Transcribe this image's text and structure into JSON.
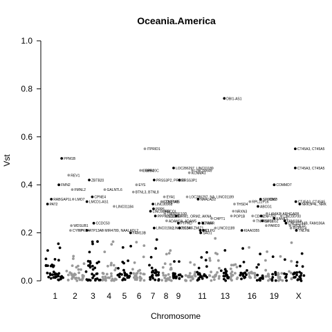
{
  "chart_data": {
    "type": "scatter",
    "title": "Oceania.America",
    "xlabel": "Chromosome",
    "ylabel": "Vst",
    "ylim": [
      0,
      1
    ],
    "y_ticks": [
      "0.0",
      "0.2",
      "0.4",
      "0.6",
      "0.8",
      "1.0"
    ],
    "x_tick_labels": [
      "1",
      "2",
      "3",
      "4",
      "5",
      "6",
      "7",
      "8",
      "9",
      "11",
      "13",
      "16",
      "19",
      "X"
    ],
    "grid": false,
    "legend": "none",
    "colors": {
      "odd": "#000000",
      "even": "#999999"
    },
    "chromosomes": [
      {
        "chr": "1",
        "shade": "odd"
      },
      {
        "chr": "2",
        "shade": "even"
      },
      {
        "chr": "3",
        "shade": "odd"
      },
      {
        "chr": "4",
        "shade": "even"
      },
      {
        "chr": "5",
        "shade": "odd"
      },
      {
        "chr": "6",
        "shade": "even"
      },
      {
        "chr": "7",
        "shade": "odd"
      },
      {
        "chr": "8",
        "shade": "even"
      },
      {
        "chr": "9",
        "shade": "odd"
      },
      {
        "chr": "10",
        "shade": "even"
      },
      {
        "chr": "11",
        "shade": "odd"
      },
      {
        "chr": "12",
        "shade": "even"
      },
      {
        "chr": "13",
        "shade": "odd"
      },
      {
        "chr": "14",
        "shade": "even"
      },
      {
        "chr": "15",
        "shade": "odd"
      },
      {
        "chr": "16",
        "shade": "even"
      },
      {
        "chr": "17",
        "shade": "odd"
      },
      {
        "chr": "18",
        "shade": "even"
      },
      {
        "chr": "19",
        "shade": "odd"
      },
      {
        "chr": "20",
        "shade": "even"
      },
      {
        "chr": "21",
        "shade": "odd"
      },
      {
        "chr": "22",
        "shade": "even"
      },
      {
        "chr": "X",
        "shade": "odd"
      }
    ],
    "labeled_points": [
      {
        "chr": "1",
        "pos": 0.1,
        "y": 0.32,
        "label": "PAT2"
      },
      {
        "chr": "1",
        "pos": 0.3,
        "y": 0.34,
        "label": "RABGAP1L"
      },
      {
        "chr": "1",
        "pos": 0.7,
        "y": 0.4,
        "label": "FMN2"
      },
      {
        "chr": "1",
        "pos": 0.85,
        "y": 0.51,
        "label": "PPM1B"
      },
      {
        "chr": "2",
        "pos": 0.15,
        "y": 0.44,
        "label": "REV1"
      },
      {
        "chr": "2",
        "pos": 0.35,
        "y": 0.38,
        "label": "FMNL2"
      },
      {
        "chr": "2",
        "pos": 0.4,
        "y": 0.34,
        "label": "LMO7"
      },
      {
        "chr": "2",
        "pos": 0.3,
        "y": 0.23,
        "label": "WDSUB1"
      },
      {
        "chr": "2",
        "pos": 0.25,
        "y": 0.21,
        "label": "CYTIP"
      },
      {
        "chr": "2",
        "pos": 0.7,
        "y": 0.21,
        "label": "PKP4"
      },
      {
        "chr": "3",
        "pos": 0.1,
        "y": 0.33,
        "label": "LMCD1-AS1"
      },
      {
        "chr": "3",
        "pos": 0.25,
        "y": 0.42,
        "label": "ZBTB20"
      },
      {
        "chr": "3",
        "pos": 0.45,
        "y": 0.35,
        "label": "CPNE4"
      },
      {
        "chr": "3",
        "pos": 0.55,
        "y": 0.24,
        "label": "CCDC50"
      },
      {
        "chr": "3",
        "pos": 0.1,
        "y": 0.21,
        "label": "ATP13A5"
      },
      {
        "chr": "4",
        "pos": 0.05,
        "y": 0.21,
        "label": "MIR4789, NAALADL2"
      },
      {
        "chr": "4",
        "pos": 0.2,
        "y": 0.38,
        "label": "GALNTL6"
      },
      {
        "chr": "4",
        "pos": 0.85,
        "y": 0.31,
        "label": "LINC01184"
      },
      {
        "chr": "5",
        "pos": 0.95,
        "y": 0.2,
        "label": "FAM13B"
      },
      {
        "chr": "6",
        "pos": 0.05,
        "y": 0.37,
        "label": "BTNL3, BTNL8"
      },
      {
        "chr": "6",
        "pos": 0.3,
        "y": 0.4,
        "label": "EYS"
      },
      {
        "chr": "6",
        "pos": 0.6,
        "y": 0.46,
        "label": "ERBB4"
      },
      {
        "chr": "6",
        "pos": 0.8,
        "y": 0.46,
        "label": "GPR20C"
      },
      {
        "chr": "6",
        "pos": 0.95,
        "y": 0.55,
        "label": "ITPRID1"
      },
      {
        "chr": "7",
        "pos": 0.6,
        "y": 0.42,
        "label": "PRSS3P2, PRSS3"
      },
      {
        "chr": "7",
        "pos": 0.3,
        "y": 0.29,
        "label": "LINC00968"
      },
      {
        "chr": "7",
        "pos": 0.5,
        "y": 0.32,
        "label": "LINC00968"
      },
      {
        "chr": "7",
        "pos": 0.55,
        "y": 0.3,
        "label": "PPP6"
      },
      {
        "chr": "7",
        "pos": 0.7,
        "y": 0.27,
        "label": "PPPK2C1/EFH"
      },
      {
        "chr": "7",
        "pos": 0.6,
        "y": 0.22,
        "label": "LINC01512"
      },
      {
        "chr": "8",
        "pos": 0.35,
        "y": 0.35,
        "label": "EYA1"
      },
      {
        "chr": "8",
        "pos": 0.1,
        "y": 0.33,
        "label": "COL27A1"
      },
      {
        "chr": "8",
        "pos": 0.3,
        "y": 0.33,
        "label": "TMEM85"
      },
      {
        "chr": "8",
        "pos": 0.2,
        "y": 0.29,
        "label": "RECQL"
      },
      {
        "chr": "8",
        "pos": 0.4,
        "y": 0.28,
        "label": "TNFRSF10D"
      },
      {
        "chr": "8",
        "pos": 0.5,
        "y": 0.27,
        "label": "SULF1"
      },
      {
        "chr": "8",
        "pos": 0.55,
        "y": 0.25,
        "label": "ADAM3A, ADAM5"
      },
      {
        "chr": "8",
        "pos": 0.9,
        "y": 0.22,
        "label": "LINC01524"
      },
      {
        "chr": "9",
        "pos": 0.05,
        "y": 0.47,
        "label": "LOC286297, LINC01189"
      },
      {
        "chr": "9",
        "pos": 0.6,
        "y": 0.42,
        "label": "PRSS3P1"
      },
      {
        "chr": "9",
        "pos": 0.3,
        "y": 0.27,
        "label": "ORM1, ORM2, AKNA"
      },
      {
        "chr": "9",
        "pos": 0.5,
        "y": 0.24,
        "label": "PTPRD"
      },
      {
        "chr": "9",
        "pos": 0.6,
        "y": 0.22,
        "label": "PCSK5"
      },
      {
        "chr": "10",
        "pos": 0.2,
        "y": 0.35,
        "label": "LOC286297, NA, LINC01189"
      },
      {
        "chr": "10",
        "pos": 0.4,
        "y": 0.45,
        "label": "KCNMA1"
      },
      {
        "chr": "10",
        "pos": 0.7,
        "y": 0.46,
        "label": "LINC00649"
      },
      {
        "chr": "10",
        "pos": 0.6,
        "y": 0.22,
        "label": "ZMIZ1"
      },
      {
        "chr": "11",
        "pos": 0.1,
        "y": 0.34,
        "label": "NAALAD2"
      },
      {
        "chr": "11",
        "pos": 0.2,
        "y": 0.24,
        "label": "TENM4"
      },
      {
        "chr": "11",
        "pos": 0.3,
        "y": 0.21,
        "label": "ME1"
      },
      {
        "chr": "11",
        "pos": 0.35,
        "y": 0.2,
        "label": "SAG1"
      },
      {
        "chr": "11",
        "pos": 0.55,
        "y": 0.24,
        "label": "TRRR"
      },
      {
        "chr": "11",
        "pos": 0.6,
        "y": 0.21,
        "label": "CLPG"
      },
      {
        "chr": "12",
        "pos": 0.25,
        "y": 0.26,
        "label": "CHPT1"
      },
      {
        "chr": "12",
        "pos": 0.6,
        "y": 0.22,
        "label": "LINC01189"
      },
      {
        "chr": "13",
        "pos": 0.4,
        "y": 0.76,
        "label": "DBI1-AS1"
      },
      {
        "chr": "14",
        "pos": 0.5,
        "y": 0.32,
        "label": "THSD4"
      },
      {
        "chr": "14",
        "pos": 0.35,
        "y": 0.29,
        "label": "NRXN3"
      },
      {
        "chr": "14",
        "pos": 0.1,
        "y": 0.27,
        "label": "POP1B"
      },
      {
        "chr": "15",
        "pos": 0.3,
        "y": 0.21,
        "label": "KIAA0355"
      },
      {
        "chr": "16",
        "pos": 0.2,
        "y": 0.33,
        "label": "RPL22P16"
      },
      {
        "chr": "16",
        "pos": 0.6,
        "y": 0.27,
        "label": "CDH8"
      },
      {
        "chr": "16",
        "pos": 0.8,
        "y": 0.25,
        "label": "TNFRSF13"
      },
      {
        "chr": "17",
        "pos": 0.2,
        "y": 0.31,
        "label": "ABCG1"
      },
      {
        "chr": "17",
        "pos": 0.6,
        "y": 0.34,
        "label": "SPOCK2"
      },
      {
        "chr": "17",
        "pos": 0.7,
        "y": 0.27,
        "label": "ZNF750"
      },
      {
        "chr": "17",
        "pos": 0.9,
        "y": 0.25,
        "label": "SUCLG2"
      },
      {
        "chr": "18",
        "pos": 0.5,
        "y": 0.34,
        "label": "DMD"
      },
      {
        "chr": "18",
        "pos": 0.4,
        "y": 0.28,
        "label": "LAMA3"
      },
      {
        "chr": "18",
        "pos": 0.3,
        "y": 0.23,
        "label": "PARD3"
      },
      {
        "chr": "19",
        "pos": 0.5,
        "y": 0.4,
        "label": "COMMD7"
      },
      {
        "chr": "19",
        "pos": 0.5,
        "y": 0.26,
        "label": "KANK3"
      },
      {
        "chr": "20",
        "pos": 0.5,
        "y": 0.28,
        "label": "ARHGAP8"
      },
      {
        "chr": "20",
        "pos": 0.7,
        "y": 0.27,
        "label": "LINC00700"
      },
      {
        "chr": "21",
        "pos": 0.2,
        "y": 0.25,
        "label": "FAM106A"
      },
      {
        "chr": "21",
        "pos": 0.6,
        "y": 0.24,
        "label": "LINC01144B, FAM106A"
      },
      {
        "chr": "22",
        "pos": 0.5,
        "y": 0.23,
        "label": "SPDE10"
      },
      {
        "chr": "22",
        "pos": 0.8,
        "y": 0.22,
        "label": "RSPH14"
      },
      {
        "chr": "X",
        "pos": 0.2,
        "y": 0.55,
        "label": "CT45A3, CT45A5"
      },
      {
        "chr": "X",
        "pos": 0.2,
        "y": 0.47,
        "label": "CT45A3, CT45A5"
      },
      {
        "chr": "X",
        "pos": 0.25,
        "y": 0.33,
        "label": "CT45A3, CT45A5"
      },
      {
        "chr": "X",
        "pos": 0.6,
        "y": 0.32,
        "label": "NRK3P4L, NRK"
      },
      {
        "chr": "X",
        "pos": 0.3,
        "y": 0.21,
        "label": "TNLHE"
      }
    ]
  }
}
